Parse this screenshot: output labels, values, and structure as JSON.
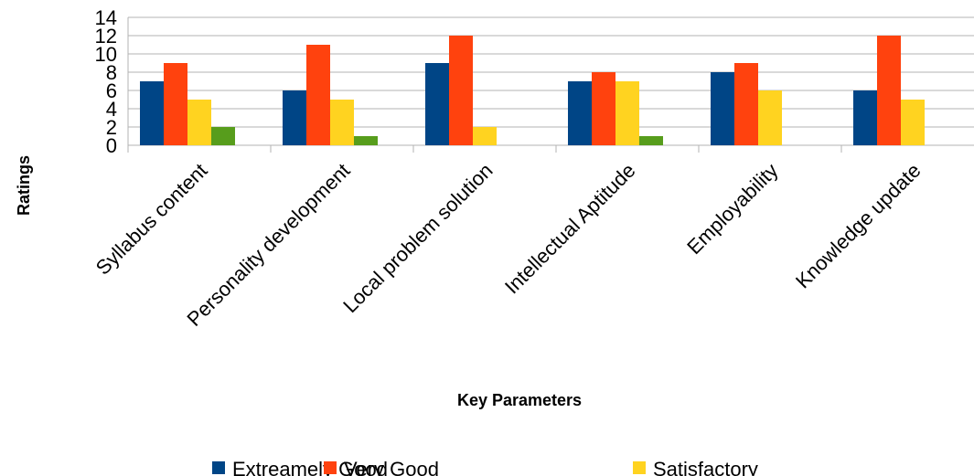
{
  "chart_data": {
    "type": "bar",
    "title": "",
    "xlabel": "Key Parameters",
    "ylabel": "Ratings",
    "ylim": [
      0,
      14
    ],
    "yticks": [
      0,
      2,
      4,
      6,
      8,
      10,
      12,
      14
    ],
    "grid": true,
    "legend_position": "bottom",
    "categories": [
      "Syllabus content",
      "Personality development",
      "Local problem solution",
      "Intellectual Aptitude",
      "Employability",
      "Knowledge update"
    ],
    "series": [
      {
        "name": "Extreamely Good",
        "color": "#004586",
        "values": [
          7,
          6,
          9,
          7,
          8,
          6
        ]
      },
      {
        "name": "Very Good",
        "color": "#ff420e",
        "values": [
          9,
          11,
          12,
          8,
          9,
          12
        ]
      },
      {
        "name": "Satisfactory",
        "color": "#ffd320",
        "values": [
          5,
          5,
          2,
          7,
          6,
          5
        ]
      },
      {
        "name": "",
        "color": "#579d1c",
        "values": [
          2,
          1,
          0,
          1,
          0,
          0
        ]
      }
    ]
  }
}
